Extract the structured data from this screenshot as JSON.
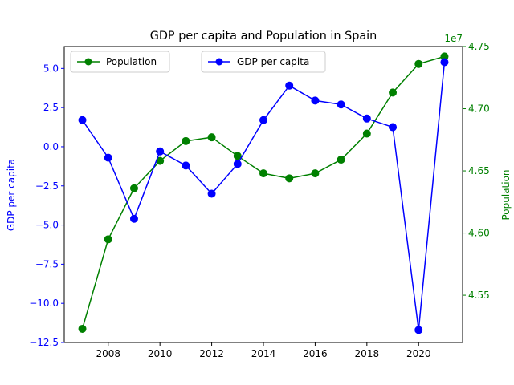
{
  "chart_data": {
    "type": "line",
    "title": "GDP per capita and Population in Spain",
    "x": [
      2007,
      2008,
      2009,
      2010,
      2011,
      2012,
      2013,
      2014,
      2015,
      2016,
      2017,
      2018,
      2019,
      2020,
      2021
    ],
    "x_ticks": [
      2008,
      2010,
      2012,
      2014,
      2016,
      2018,
      2020
    ],
    "xlim": [
      2006.3,
      2021.7
    ],
    "series": [
      {
        "name": "GDP per capita",
        "axis": "left",
        "color": "#0000ff",
        "values": [
          1.7,
          -0.7,
          -4.6,
          -0.3,
          -1.2,
          -3.0,
          -1.1,
          1.7,
          3.9,
          2.95,
          2.7,
          1.8,
          1.25,
          -11.7,
          5.4
        ]
      },
      {
        "name": "Population",
        "axis": "right",
        "color": "#008000",
        "values": [
          45.23,
          45.95,
          46.36,
          46.58,
          46.74,
          46.77,
          46.62,
          46.48,
          46.44,
          46.48,
          46.59,
          46.8,
          47.13,
          47.36,
          47.42
        ]
      }
    ],
    "y_left": {
      "label": "GDP per capita",
      "color": "#0000ff",
      "ylim": [
        -12.5,
        6.4
      ],
      "ticks": [
        -12.5,
        -10.0,
        -7.5,
        -5.0,
        -2.5,
        0.0,
        2.5,
        5.0
      ],
      "tick_labels": [
        "−12.5",
        "−10.0",
        "−7.5",
        "−5.0",
        "−2.5",
        "0.0",
        "2.5",
        "5.0"
      ]
    },
    "y_right": {
      "label": "Population",
      "color": "#008000",
      "ylim": [
        45.12,
        47.5
      ],
      "ticks": [
        45.5,
        46.0,
        46.5,
        47.0,
        47.5
      ],
      "tick_labels": [
        "4.55",
        "4.60",
        "4.65",
        "4.70",
        "4.75"
      ],
      "offset_text": "1e7"
    },
    "legends": [
      {
        "label": "Population",
        "color": "#008000",
        "position": "upper-left"
      },
      {
        "label": "GDP per capita",
        "color": "#0000ff",
        "position": "upper-center"
      }
    ],
    "grid": false
  }
}
